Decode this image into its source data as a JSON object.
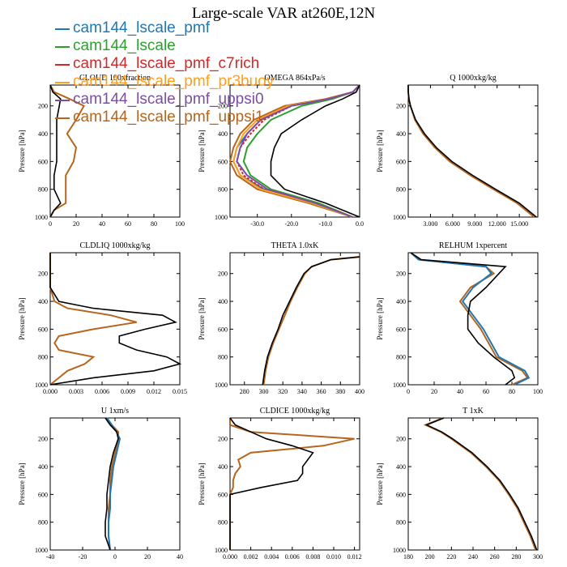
{
  "title": "Large-scale VAR at260E,12N",
  "legend": [
    {
      "label": "cam144_lscale_pmf",
      "color": "#1f77b4"
    },
    {
      "label": "cam144_lscale",
      "color": "#2ca02c"
    },
    {
      "label": "cam144_lscale_pmf_c7rich",
      "color": "#d62728"
    },
    {
      "label": "cam144_lscale_pmf_pr3buoy",
      "color": "#ff9f1c"
    },
    {
      "label": "cam144_lscale_pmf_uppsi0",
      "color": "#7b4ea3"
    },
    {
      "label": "cam144_lscale_pmf_uppsi1",
      "color": "#b5651d"
    }
  ],
  "chart_data": [
    {
      "type": "line",
      "title": "CLOUD 100xfraction",
      "ylabel": "Pressure [hPa]",
      "xlim": [
        0,
        100
      ],
      "ylim": [
        1000,
        50
      ],
      "xticks": [
        0,
        20,
        40,
        60,
        80,
        100
      ],
      "xtick_labels": [
        "0",
        "20",
        "40",
        "60",
        "80",
        "100"
      ],
      "yticks": [
        200,
        400,
        600,
        800,
        1000
      ],
      "y": [
        50,
        100,
        150,
        200,
        300,
        400,
        500,
        600,
        700,
        800,
        900,
        950,
        1000
      ],
      "series": [
        {
          "values": [
            0,
            3,
            15,
            26,
            20,
            13,
            20,
            18,
            12,
            12,
            12,
            3,
            0
          ]
        },
        {
          "values": [
            0,
            2,
            8,
            7,
            5,
            5,
            5,
            5,
            3,
            3,
            8,
            3,
            0
          ]
        }
      ]
    },
    {
      "type": "line",
      "title": "OMEGA  864xPa/s",
      "ylabel": "Pressure [hPa]",
      "xlim": [
        -38,
        0
      ],
      "ylim": [
        1000,
        50
      ],
      "xticks": [
        -30,
        -20,
        -10,
        0
      ],
      "xtick_labels": [
        "-30.0",
        "-20.0",
        "-10.0",
        "0.0"
      ],
      "yticks": [
        200,
        400,
        600,
        800,
        1000
      ],
      "y": [
        50,
        100,
        150,
        200,
        300,
        400,
        500,
        600,
        700,
        800,
        900,
        1000
      ],
      "series": [
        {
          "values": [
            0,
            -2,
            -10,
            -22,
            -31,
            -35,
            -37,
            -38,
            -36,
            -30,
            -15,
            -2
          ]
        },
        {
          "values": [
            0,
            -2,
            -9,
            -20,
            -29,
            -33,
            -36,
            -37,
            -35,
            -28,
            -14,
            -2
          ]
        },
        {
          "values": [
            0,
            -2,
            -8,
            -17,
            -26,
            -30,
            -33,
            -34,
            -32,
            -26,
            -12,
            -2
          ]
        },
        {
          "values": [
            0,
            -2,
            -9,
            -20,
            -28,
            -32,
            -35,
            -36,
            -34,
            -28,
            -13,
            -2
          ]
        },
        {
          "values": [
            0,
            -2,
            -9,
            -21,
            -30,
            -34,
            -36,
            -37,
            -35,
            -29,
            -14,
            -2
          ]
        },
        {
          "values": [
            0,
            -2,
            -9,
            -20,
            -29,
            -33,
            -35,
            -36,
            -33,
            -27,
            -13,
            -2
          ]
        },
        {
          "values": [
            0,
            -1,
            -5,
            -10,
            -17,
            -23,
            -25,
            -26,
            -26,
            -22,
            -10,
            0
          ]
        }
      ]
    },
    {
      "type": "line",
      "title": "Q  1000xkg/kg",
      "ylabel": "Pressure [hPa]",
      "xlim": [
        0,
        17.5
      ],
      "ylim": [
        1000,
        50
      ],
      "xticks": [
        3,
        6,
        9,
        12,
        15
      ],
      "xtick_labels": [
        "3.000",
        "6.000",
        "9.000",
        "12.000",
        "15.000"
      ],
      "yticks": [
        200,
        400,
        600,
        800,
        1000
      ],
      "y": [
        50,
        100,
        150,
        200,
        300,
        400,
        500,
        600,
        700,
        800,
        900,
        1000
      ],
      "series": [
        {
          "values": [
            0,
            0,
            0.1,
            0.3,
            0.9,
            2.0,
            3.6,
            5.6,
            8.4,
            11.5,
            14.7,
            17
          ]
        },
        {
          "values": [
            0,
            0,
            0.1,
            0.3,
            1.0,
            2.2,
            3.8,
            5.9,
            8.7,
            11.8,
            15,
            17.3
          ]
        }
      ]
    },
    {
      "type": "line",
      "title": "CLDLIQ  1000xkg/kg",
      "ylabel": "Pressure [hPa]",
      "xlim": [
        0,
        0.015
      ],
      "ylim": [
        1000,
        50
      ],
      "xticks": [
        0,
        0.003,
        0.006,
        0.009,
        0.012,
        0.015
      ],
      "xtick_labels": [
        "0.000",
        "0.003",
        "0.006",
        "0.009",
        "0.012",
        "0.015"
      ],
      "yticks": [
        200,
        400,
        600,
        800,
        1000
      ],
      "y": [
        50,
        200,
        300,
        400,
        450,
        500,
        550,
        600,
        650,
        700,
        750,
        800,
        850,
        900,
        950,
        1000
      ],
      "series": [
        {
          "values": [
            0,
            0,
            0,
            0.0005,
            0.002,
            0.007,
            0.01,
            0.005,
            0.001,
            0.0005,
            0.001,
            0.005,
            0.004,
            0.002,
            0.001,
            0
          ]
        },
        {
          "values": [
            0,
            0,
            0,
            0.001,
            0.005,
            0.013,
            0.0145,
            0.011,
            0.008,
            0.008,
            0.01,
            0.0135,
            0.015,
            0.012,
            0.005,
            0
          ]
        }
      ]
    },
    {
      "type": "line",
      "title": "THETA  1.0xK",
      "ylabel": "Pressure [hPa]",
      "xlim": [
        265,
        400
      ],
      "ylim": [
        1000,
        50
      ],
      "xticks": [
        280,
        300,
        320,
        340,
        360,
        380,
        400
      ],
      "xtick_labels": [
        "280",
        "300",
        "320",
        "340",
        "360",
        "380",
        "400"
      ],
      "yticks": [
        200,
        400,
        600,
        800,
        1000
      ],
      "y": [
        80,
        100,
        150,
        200,
        300,
        400,
        500,
        600,
        700,
        800,
        900,
        1000
      ],
      "series": [
        {
          "values": [
            400,
            370,
            350,
            343,
            335,
            328,
            322,
            316,
            310,
            305,
            302,
            300
          ]
        },
        {
          "values": [
            400,
            370,
            350,
            342,
            334,
            327,
            320,
            315,
            309,
            304,
            301,
            299
          ]
        }
      ]
    },
    {
      "type": "line",
      "title": "RELHUM  1xpercent",
      "ylabel": "Pressure [hPa]",
      "xlim": [
        0,
        100
      ],
      "ylim": [
        1000,
        50
      ],
      "xticks": [
        0,
        20,
        40,
        60,
        80,
        100
      ],
      "xtick_labels": [
        "0",
        "20",
        "40",
        "60",
        "80",
        "100"
      ],
      "yticks": [
        200,
        400,
        600,
        800,
        1000
      ],
      "y": [
        50,
        100,
        150,
        200,
        300,
        400,
        500,
        600,
        700,
        800,
        900,
        950,
        1000
      ],
      "series": [
        {
          "values": [
            2,
            8,
            60,
            66,
            48,
            40,
            48,
            56,
            62,
            68,
            88,
            92,
            80
          ]
        },
        {
          "values": [
            2,
            8,
            60,
            64,
            50,
            42,
            50,
            58,
            64,
            70,
            90,
            93,
            82
          ]
        },
        {
          "values": [
            2,
            10,
            75,
            70,
            60,
            48,
            46,
            46,
            54,
            66,
            80,
            82,
            75
          ]
        }
      ]
    },
    {
      "type": "line",
      "title": "U  1xm/s",
      "ylabel": "Pressure [hPa]",
      "xlim": [
        -40,
        40
      ],
      "ylim": [
        1000,
        50
      ],
      "xticks": [
        -40,
        -20,
        0,
        20,
        40
      ],
      "xtick_labels": [
        "-40",
        "-20",
        "0",
        "20",
        "40"
      ],
      "yticks": [
        200,
        400,
        600,
        800,
        1000
      ],
      "y": [
        50,
        100,
        150,
        200,
        300,
        400,
        500,
        600,
        700,
        800,
        900,
        1000
      ],
      "series": [
        {
          "values": [
            -5,
            -2,
            2,
            2,
            0,
            -2,
            -3,
            -3,
            -4,
            -4,
            -4,
            -3
          ]
        },
        {
          "values": [
            -5,
            -2,
            1,
            3,
            1,
            -1,
            -2,
            -3,
            -3,
            -4,
            -4,
            -3
          ]
        },
        {
          "values": [
            -6,
            -3,
            1,
            2,
            -1,
            -3,
            -4,
            -5,
            -5,
            -6,
            -6,
            -3
          ]
        }
      ]
    },
    {
      "type": "line",
      "title": "CLDICE  1000xkg/kg",
      "ylabel": "Pressure [hPa]",
      "xlim": [
        0,
        0.0125
      ],
      "ylim": [
        1000,
        50
      ],
      "xticks": [
        0,
        0.002,
        0.004,
        0.006,
        0.008,
        0.01,
        0.012
      ],
      "xtick_labels": [
        "0.000",
        "0.002",
        "0.004",
        "0.006",
        "0.008",
        "0.010",
        "0.012"
      ],
      "yticks": [
        200,
        400,
        600,
        800,
        1000
      ],
      "y": [
        50,
        100,
        150,
        200,
        250,
        300,
        350,
        400,
        450,
        500,
        550,
        600,
        650,
        700,
        1000
      ],
      "series": [
        {
          "values": [
            0,
            0,
            0.002,
            0.012,
            0.009,
            0.002,
            0.0008,
            0.001,
            0.0005,
            0.0003,
            0.0003,
            0,
            0,
            0,
            0
          ]
        },
        {
          "values": [
            0,
            0.0005,
            0.002,
            0.0035,
            0.006,
            0.008,
            0.0075,
            0.007,
            0.007,
            0.0065,
            0.003,
            0,
            0,
            0,
            0
          ]
        }
      ]
    },
    {
      "type": "line",
      "title": "T  1xK",
      "ylabel": "Pressure [hPa]",
      "xlim": [
        180,
        300
      ],
      "ylim": [
        1000,
        50
      ],
      "xticks": [
        180,
        200,
        220,
        240,
        260,
        280,
        300
      ],
      "xtick_labels": [
        "180",
        "200",
        "220",
        "240",
        "260",
        "280",
        "300"
      ],
      "yticks": [
        200,
        400,
        600,
        800,
        1000
      ],
      "y": [
        50,
        100,
        150,
        200,
        300,
        400,
        500,
        600,
        700,
        800,
        900,
        1000
      ],
      "series": [
        {
          "values": [
            212,
            196,
            210,
            220,
            238,
            252,
            264,
            273,
            281,
            287,
            293,
            298
          ]
        },
        {
          "values": [
            213,
            197,
            211,
            221,
            239,
            253,
            265,
            274,
            282,
            288,
            294,
            299
          ]
        }
      ]
    }
  ]
}
